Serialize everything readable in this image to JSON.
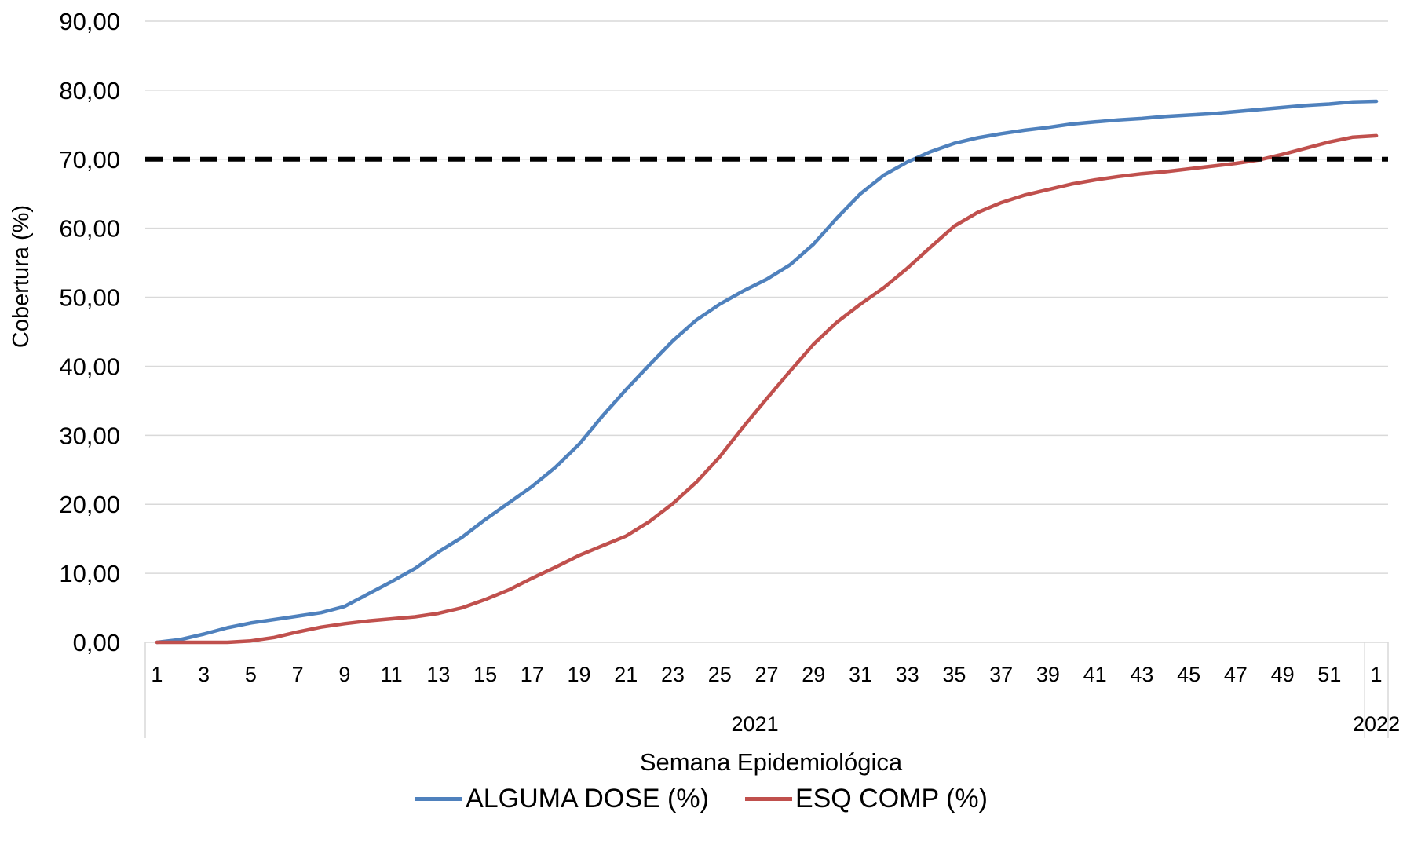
{
  "chart_data": {
    "type": "line",
    "title": "",
    "xlabel": "Semana Epidemiológica",
    "ylabel": "Cobertura (%)",
    "ylim": [
      0,
      90
    ],
    "y_ticks": [
      "0,00",
      "10,00",
      "20,00",
      "30,00",
      "40,00",
      "50,00",
      "60,00",
      "70,00",
      "80,00",
      "90,00"
    ],
    "grid": "horizontal",
    "legend_position": "bottom",
    "x": [
      "2021-1",
      "2021-2",
      "2021-3",
      "2021-4",
      "2021-5",
      "2021-6",
      "2021-7",
      "2021-8",
      "2021-9",
      "2021-10",
      "2021-11",
      "2021-12",
      "2021-13",
      "2021-14",
      "2021-15",
      "2021-16",
      "2021-17",
      "2021-18",
      "2021-19",
      "2021-20",
      "2021-21",
      "2021-22",
      "2021-23",
      "2021-24",
      "2021-25",
      "2021-26",
      "2021-27",
      "2021-28",
      "2021-29",
      "2021-30",
      "2021-31",
      "2021-32",
      "2021-33",
      "2021-34",
      "2021-35",
      "2021-36",
      "2021-37",
      "2021-38",
      "2021-39",
      "2021-40",
      "2021-41",
      "2021-42",
      "2021-43",
      "2021-44",
      "2021-45",
      "2021-46",
      "2021-47",
      "2021-48",
      "2021-49",
      "2021-50",
      "2021-51",
      "2021-52",
      "2022-1"
    ],
    "x_tick_labels": [
      "1",
      "3",
      "5",
      "7",
      "9",
      "11",
      "13",
      "15",
      "17",
      "19",
      "21",
      "23",
      "25",
      "27",
      "29",
      "31",
      "33",
      "35",
      "37",
      "39",
      "41",
      "43",
      "45",
      "47",
      "49",
      "51",
      "1"
    ],
    "x_group_labels": [
      "2021",
      "2022"
    ],
    "series": [
      {
        "name": "ALGUMA DOSE (%)",
        "color": "#4f81bd",
        "values": [
          0.0,
          0.4,
          1.2,
          2.1,
          2.8,
          3.3,
          3.8,
          4.3,
          5.2,
          7.0,
          8.8,
          10.7,
          13.1,
          15.2,
          17.8,
          20.2,
          22.6,
          25.4,
          28.7,
          32.8,
          36.6,
          40.2,
          43.7,
          46.7,
          49.0,
          50.9,
          52.6,
          54.7,
          57.7,
          61.5,
          65.0,
          67.7,
          69.6,
          71.1,
          72.3,
          73.1,
          73.7,
          74.2,
          74.6,
          75.1,
          75.4,
          75.7,
          75.9,
          76.2,
          76.4,
          76.6,
          76.9,
          77.2,
          77.5,
          77.8,
          78.0,
          78.3,
          78.4
        ]
      },
      {
        "name": "ESQ COMP (%)",
        "color": "#c0504d",
        "values": [
          0.0,
          0.0,
          0.0,
          0.0,
          0.2,
          0.7,
          1.5,
          2.2,
          2.7,
          3.1,
          3.4,
          3.7,
          4.2,
          5.0,
          6.2,
          7.6,
          9.3,
          10.9,
          12.6,
          14.0,
          15.4,
          17.5,
          20.1,
          23.2,
          26.9,
          31.2,
          35.3,
          39.3,
          43.2,
          46.4,
          49.0,
          51.4,
          54.2,
          57.3,
          60.3,
          62.3,
          63.7,
          64.8,
          65.6,
          66.4,
          67.0,
          67.5,
          67.9,
          68.2,
          68.6,
          69.0,
          69.4,
          69.9,
          70.7,
          71.6,
          72.5,
          73.2,
          73.4
        ]
      }
    ],
    "reference_line": {
      "value": 70,
      "style": "dashed",
      "color": "#000000"
    }
  }
}
